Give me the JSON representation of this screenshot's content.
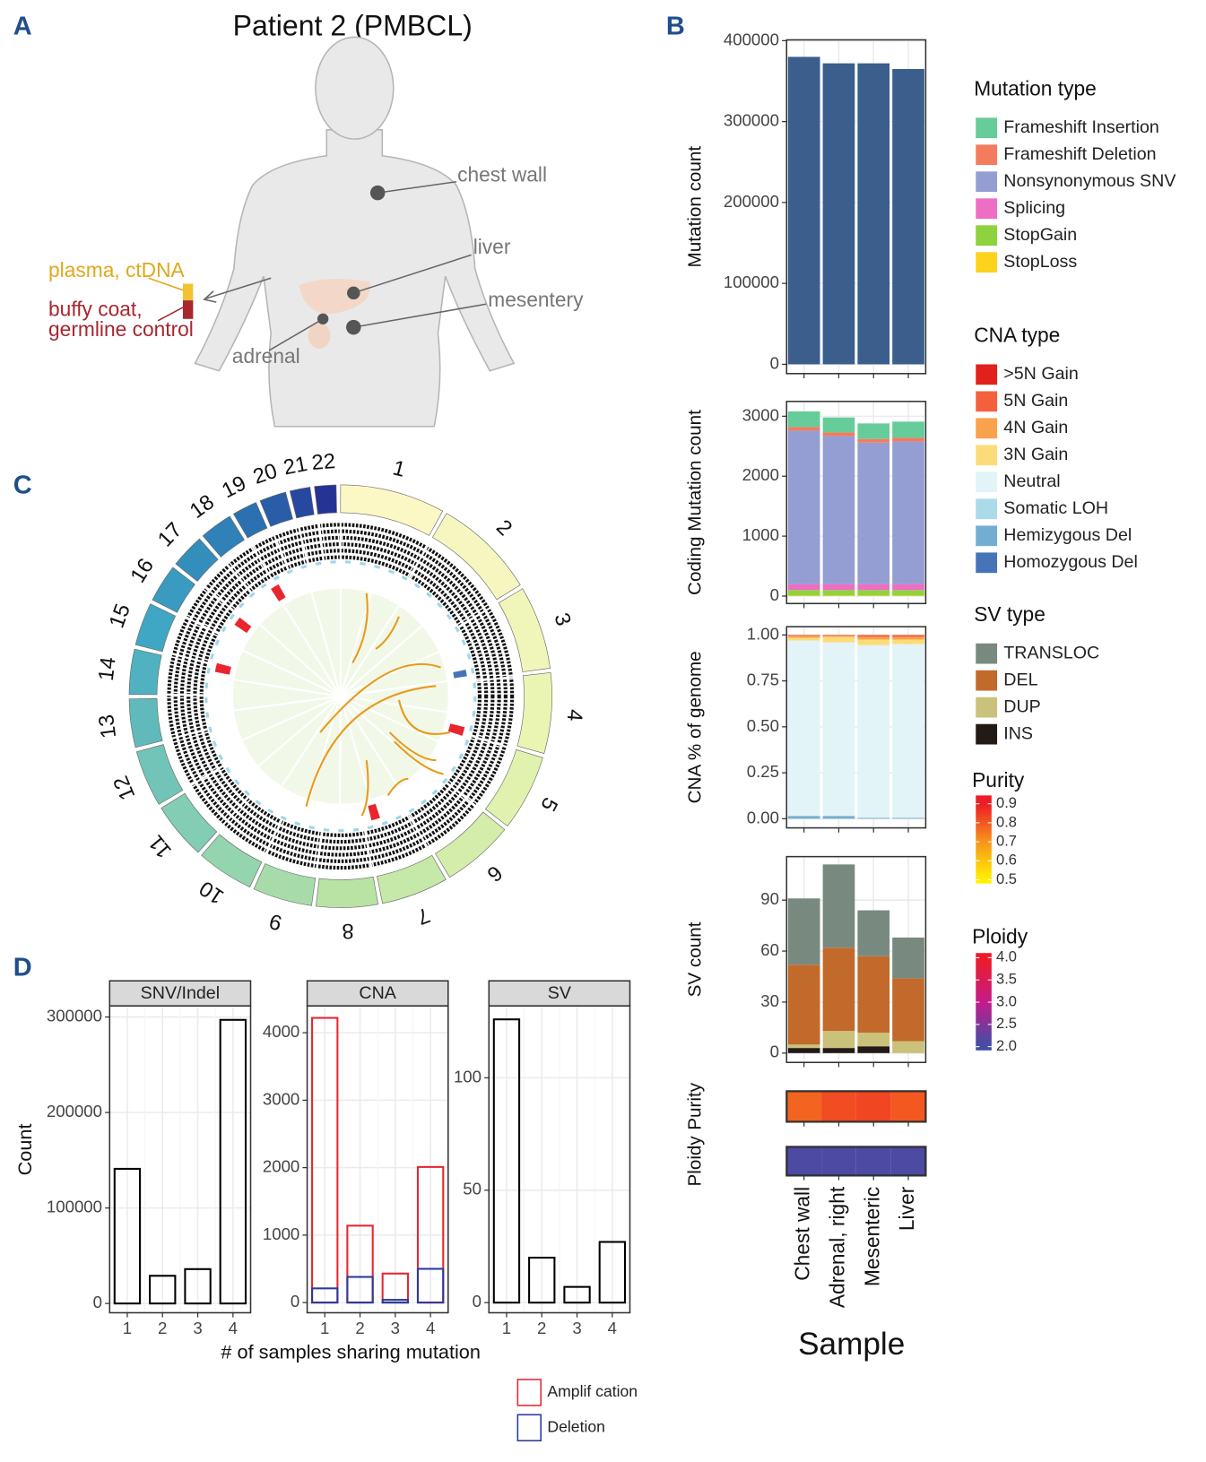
{
  "panel_labels": [
    "A",
    "B",
    "C",
    "D"
  ],
  "panel_a": {
    "title": "Patient 2 (PMBCL)",
    "sites": [
      "chest wall",
      "liver",
      "mesentery",
      "adrenal"
    ],
    "blood": [
      "plasma, ctDNA",
      "buffy coat,",
      "germline control"
    ]
  },
  "panel_c": {
    "chromosomes": [
      "1",
      "2",
      "3",
      "4",
      "5",
      "6",
      "7",
      "8",
      "9",
      "10",
      "11",
      "12",
      "13",
      "14",
      "15",
      "16",
      "17",
      "18",
      "19",
      "20",
      "21",
      "22"
    ]
  },
  "chart_data": [
    {
      "type": "bar",
      "ylabel": "Mutation count",
      "values": [
        380000,
        372000,
        372000,
        365000
      ],
      "color": "#3b5e8c",
      "ylim": [
        -11500,
        401000
      ],
      "yticks": [
        0,
        100000,
        200000,
        300000,
        400000
      ],
      "grid": true
    },
    {
      "type": "bar",
      "ylabel": "Coding Mutation count",
      "legend_title": "Mutation type",
      "stacked": true,
      "series": [
        {
          "name": "Frameshift Insertion",
          "color": "#66cc99",
          "values": [
            260,
            250,
            260,
            270
          ]
        },
        {
          "name": "Frameshift Deletion",
          "color": "#f47b5e",
          "values": [
            60,
            60,
            60,
            60
          ]
        },
        {
          "name": "Nonsynonymous SNV",
          "color": "#959ed3",
          "values": [
            2560,
            2470,
            2360,
            2380
          ]
        },
        {
          "name": "Splicing",
          "color": "#ec6fc4",
          "values": [
            100,
            100,
            100,
            100
          ]
        },
        {
          "name": "StopGain",
          "color": "#8ed23e",
          "values": [
            90,
            90,
            90,
            90
          ]
        },
        {
          "name": "StopLoss",
          "color": "#fcd21c",
          "values": [
            10,
            10,
            10,
            10
          ]
        }
      ],
      "ylim": [
        -124,
        3247
      ],
      "yticks": [
        0,
        1000,
        2000,
        3000
      ],
      "grid": true
    },
    {
      "type": "bar",
      "ylabel": "CNA % of genome",
      "legend_title": "CNA type",
      "stacked": true,
      "series": [
        {
          "name": ">5N Gain",
          "color": "#e3211c",
          "values": [
            0,
            0,
            0,
            0
          ]
        },
        {
          "name": "5N Gain",
          "color": "#f5603c",
          "values": [
            0.005,
            0.005,
            0.01,
            0.01
          ]
        },
        {
          "name": "4N Gain",
          "color": "#f9a24b",
          "values": [
            0.01,
            0.005,
            0.015,
            0.015
          ]
        },
        {
          "name": "3N Gain",
          "color": "#fcdc7a",
          "values": [
            0.015,
            0.03,
            0.03,
            0.025
          ]
        },
        {
          "name": "Neutral",
          "color": "#e2f4f8",
          "values": [
            0.955,
            0.945,
            0.94,
            0.945
          ]
        },
        {
          "name": "Somatic LOH",
          "color": "#abdbe8",
          "values": [
            0,
            0,
            0,
            0
          ]
        },
        {
          "name": "Hemizygous Del",
          "color": "#74add2",
          "values": [
            0.015,
            0.015,
            0.005,
            0.005
          ]
        },
        {
          "name": "Homozygous Del",
          "color": "#4674b8",
          "values": [
            0,
            0,
            0,
            0
          ]
        }
      ],
      "ylim": [
        -0.05,
        1.045
      ],
      "yticks": [
        {
          "value": 0,
          "label": "0.00"
        },
        {
          "value": 0.25,
          "label": "0.25"
        },
        {
          "value": 0.5,
          "label": "0.50"
        },
        {
          "value": 0.75,
          "label": "0.75"
        },
        {
          "value": 1,
          "label": "1.00"
        }
      ],
      "grid": true
    },
    {
      "type": "bar",
      "ylabel": "SV count",
      "legend_title": "SV type",
      "stacked": true,
      "series": [
        {
          "name": "TRANSLOC",
          "color": "#788a7f",
          "values": [
            39,
            49,
            27,
            24
          ]
        },
        {
          "name": "DEL",
          "color": "#c26a2c",
          "values": [
            47,
            49,
            45,
            37
          ]
        },
        {
          "name": "DUP",
          "color": "#cac27b",
          "values": [
            2,
            10,
            8,
            7
          ]
        },
        {
          "name": "INS",
          "color": "#221a15",
          "values": [
            3,
            3,
            4,
            0
          ]
        }
      ],
      "ylim": [
        -5.5,
        115.6
      ],
      "yticks": [
        0,
        30,
        60,
        90
      ],
      "grid": true
    },
    {
      "type": "heatmap",
      "ylabel": "Purity",
      "legend_title": "Purity",
      "values": [
        0.78,
        0.82,
        0.83,
        0.8
      ],
      "colors": [
        "#fff200",
        "#f7941d",
        "#ee1c25"
      ],
      "color_lim": [
        0.5,
        0.9
      ],
      "color_ticks": [
        0.5,
        0.6,
        0.7,
        0.8,
        0.9
      ]
    },
    {
      "type": "heatmap",
      "ylabel": "Ploidy",
      "legend_title": "Ploidy",
      "xlabel": "Sample",
      "categories": [
        "Chest wall",
        "Adrenal, right",
        "Mesenteric",
        "Liver"
      ],
      "values": [
        2.1,
        2.1,
        2.1,
        2.1
      ],
      "colors": [
        "#3e4fa6",
        "#c51b8a",
        "#ee1c25"
      ],
      "color_lim": [
        2,
        4
      ],
      "color_ticks": [
        {
          "value": 2,
          "label": "2.0"
        },
        {
          "value": 2.5,
          "label": "2.5"
        },
        {
          "value": 3,
          "label": "3.0"
        },
        {
          "value": 3.5,
          "label": "3.5"
        },
        {
          "value": 4,
          "label": "4.0"
        }
      ]
    },
    {
      "type": "bar",
      "title": "SNV/Indel",
      "ylabel": "Count",
      "bar_style": "outline",
      "color": "#000000",
      "categories": [
        "1",
        "2",
        "3",
        "4"
      ],
      "values": [
        141000,
        29000,
        36000,
        297000
      ],
      "ylim": [
        -9700,
        311650
      ],
      "yticks": [
        0,
        100000,
        200000,
        300000
      ],
      "grid": true
    },
    {
      "type": "bar",
      "title": "CNA",
      "xlabel": "# of samples sharing mutation",
      "bar_style": "outline",
      "stacked": false,
      "categories": [
        "1",
        "2",
        "3",
        "4"
      ],
      "series": [
        {
          "name": "Amplif cation",
          "color": "#e8262e",
          "values": [
            4220,
            1140,
            430,
            2010
          ]
        },
        {
          "name": "Deletion",
          "color": "#2b3a9e",
          "values": [
            210,
            380,
            40,
            500
          ]
        }
      ],
      "ylim": [
        -151,
        4398
      ],
      "yticks": [
        0,
        1000,
        2000,
        3000,
        4000
      ],
      "grid": true
    },
    {
      "type": "bar",
      "title": "SV",
      "bar_style": "outline",
      "color": "#000000",
      "categories": [
        "1",
        "2",
        "3",
        "4"
      ],
      "values": [
        126,
        20,
        7,
        27
      ],
      "ylim": [
        -4.5,
        132
      ],
      "yticks": [
        0,
        50,
        100
      ],
      "grid": true
    }
  ]
}
